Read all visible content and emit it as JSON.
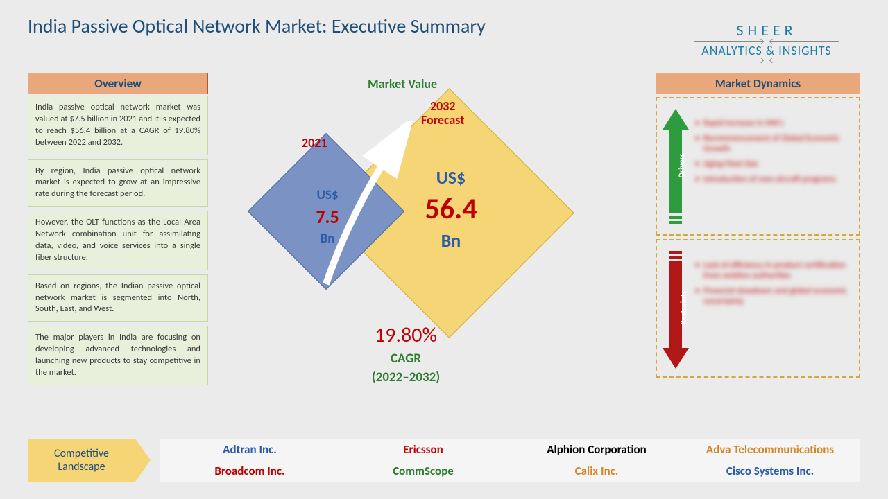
{
  "title": "India Passive Optical Network Market: Executive Summary",
  "logo": {
    "top": "SHEER",
    "bottom": "ANALYTICS & INSIGHTS"
  },
  "overview": {
    "header": "Overview",
    "items": [
      "India passive optical network market was valued at $7.5 billion in 2021 and it is expected to reach $56.4 billion at a CAGR of 19.80% between 2022 and 2032.",
      "By region, India passive optical network market is expected to grow at an impressive rate during the forecast period.",
      "However, the OLT functions as the Local Area Network combination unit for assimilating data, video, and voice services into a single fiber structure.",
      "Based on regions, the Indian passive optical network market is segmented into North, South, East, and West.",
      "The major players in India are focusing on developing advanced technologies and launching new products to stay competitive in the market."
    ]
  },
  "market_value": {
    "title": "Market Value",
    "year1": "2021",
    "year2_line1": "2032",
    "year2_line2": "Forecast",
    "currency": "US$",
    "val1": "7.5",
    "val2": "56.4",
    "unit": "Bn",
    "cagr_val": "19.80%",
    "cagr_label": "CAGR",
    "cagr_period": "(2022–2032)",
    "diamond1_fill": "#7b92c4",
    "diamond1_border": "#4a6aa5",
    "diamond2_fill": "#f5d576",
    "diamond2_border": "#d4a838",
    "value_color": "#c00000",
    "currency_color": "#2a5caa"
  },
  "dynamics": {
    "header": "Market Dynamics",
    "drivers_label": "Drivers",
    "restraints_label": "Restraints",
    "drivers": [
      "Rapid increase in HNI's",
      "Recommencement of Global Economic Growth",
      "Aging Fleet Size",
      "Introduction of new aircraft programs"
    ],
    "restraints": [
      "Lack of efficiency in product certification from aviation authorities",
      "Financial slowdown and global economic uncertainty"
    ],
    "driver_color": "#2e9b3f",
    "restraint_color": "#b01818"
  },
  "competitive": {
    "label_line1": "Competitive",
    "label_line2": "Landscape",
    "companies": [
      {
        "name": "Adtran Inc.",
        "cls": "c-blue"
      },
      {
        "name": "Ericsson",
        "cls": "c-red"
      },
      {
        "name": "Alphion Corporation",
        "cls": "c-black"
      },
      {
        "name": "Adva Telecommunications",
        "cls": "c-orange"
      },
      {
        "name": "Broadcom Inc.",
        "cls": "c-red"
      },
      {
        "name": "CommScope",
        "cls": "c-green"
      },
      {
        "name": "Calix Inc.",
        "cls": "c-orange"
      },
      {
        "name": "Cisco Systems Inc.",
        "cls": "c-blue"
      }
    ]
  }
}
